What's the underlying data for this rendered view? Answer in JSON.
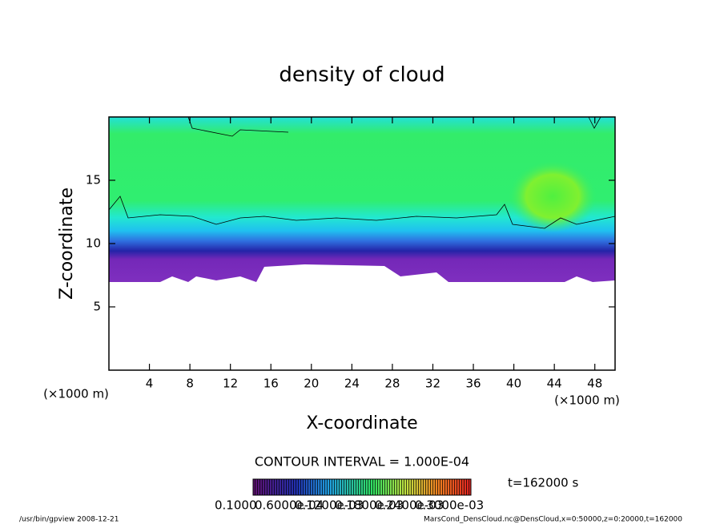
{
  "chart_data": {
    "type": "shaded-contour",
    "title": "density of cloud",
    "xlabel": "X-coordinate",
    "ylabel": "Z-coordinate",
    "x_unit": "(×1000 m)",
    "y_unit": "(×1000 m)",
    "xlim": [
      0,
      50
    ],
    "ylim": [
      0,
      20
    ],
    "xticks": [
      4,
      8,
      12,
      16,
      20,
      24,
      28,
      32,
      36,
      40,
      44,
      48
    ],
    "yticks": [
      5,
      10,
      15
    ],
    "contour_note": "CONTOUR INTERVAL = 1.000E-04",
    "time_label": "t=162000 s",
    "colorbar_labels": [
      "0.1000",
      "0.6000e-04",
      "0.1200e-03",
      "0.1800e-03",
      "0.2400e-03",
      "0.3000e-03"
    ],
    "footer_left": "/usr/bin/gpview  2008-12-21",
    "footer_right": "MarsCond_DensCloud.nc@DensCloud,x=0:50000,z=0:20000,t=162000"
  }
}
